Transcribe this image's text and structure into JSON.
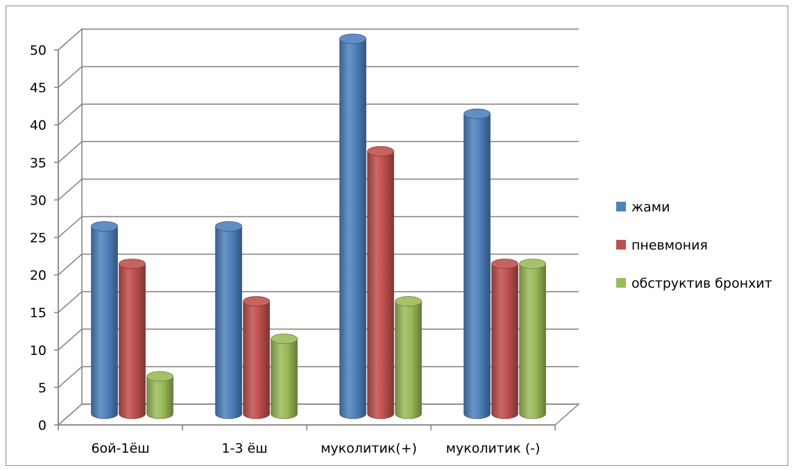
{
  "chart_data": {
    "type": "bar",
    "title": "",
    "xlabel": "",
    "ylabel": "",
    "categories": [
      "6ой-1ёш",
      "1-3 ёш",
      "муколитик(+)",
      "муколитик (-)"
    ],
    "series": [
      {
        "name": "жами",
        "values": [
          25,
          25,
          50,
          40
        ],
        "color": "#4f81bd"
      },
      {
        "name": "пневмония",
        "values": [
          20,
          15,
          35,
          20
        ],
        "color": "#c0504d"
      },
      {
        "name": "обструктив бронхит",
        "values": [
          5,
          10,
          15,
          20
        ],
        "color": "#9bbb59"
      }
    ],
    "ylim": [
      0,
      50
    ],
    "yticks": [
      0,
      5,
      10,
      15,
      20,
      25,
      30,
      35,
      40,
      45,
      50
    ],
    "grid": true,
    "legend_position": "right",
    "style": "3d-cylinder"
  }
}
